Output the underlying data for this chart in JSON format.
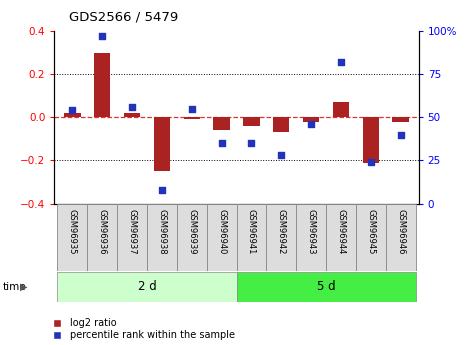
{
  "title": "GDS2566 / 5479",
  "samples": [
    "GSM96935",
    "GSM96936",
    "GSM96937",
    "GSM96938",
    "GSM96939",
    "GSM96940",
    "GSM96941",
    "GSM96942",
    "GSM96943",
    "GSM96944",
    "GSM96945",
    "GSM96946"
  ],
  "log2_ratio": [
    0.02,
    0.3,
    0.02,
    -0.25,
    -0.01,
    -0.06,
    -0.04,
    -0.07,
    -0.02,
    0.07,
    -0.21,
    -0.02
  ],
  "percentile_rank": [
    54,
    97,
    56,
    8,
    55,
    35,
    35,
    28,
    46,
    82,
    24,
    40
  ],
  "group1_label": "2 d",
  "group1_count": 6,
  "group2_label": "5 d",
  "group2_count": 6,
  "ylim_left": [
    -0.4,
    0.4
  ],
  "ylim_right": [
    0,
    100
  ],
  "yticks_left": [
    -0.4,
    -0.2,
    0.0,
    0.2,
    0.4
  ],
  "yticks_right": [
    0,
    25,
    50,
    75,
    100
  ],
  "bar_color": "#aa2222",
  "dot_color": "#2233bb",
  "zero_line_color": "#dd3333",
  "grid_color": "#000000",
  "bg_color": "#ffffff",
  "group1_color": "#ccffcc",
  "group2_color": "#44ee44",
  "cell_color": "#dddddd",
  "legend_bar_label": "log2 ratio",
  "legend_dot_label": "percentile rank within the sample",
  "time_label": "time"
}
